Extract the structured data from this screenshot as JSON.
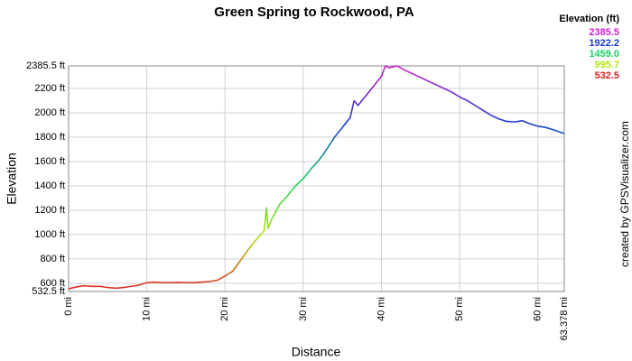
{
  "chart_data": {
    "type": "line",
    "title": "Green Spring to Rockwood, PA",
    "x_label": "Distance",
    "y_label": "Elevation",
    "credit": "created by GPSVisualizer.com",
    "legend": {
      "title": "Elevation (ft)",
      "entries": [
        {
          "value": 2385.5,
          "label": "2385.5",
          "color": "#d01ed0"
        },
        {
          "value": 1922.2,
          "label": "1922.2",
          "color": "#1a3ad0"
        },
        {
          "value": 1459,
          "label": "1459.0",
          "color": "#18d060"
        },
        {
          "value": 995.7,
          "label": "995.7",
          "color": "#b4e414"
        },
        {
          "value": 532.5,
          "label": "532.5",
          "color": "#e02020"
        }
      ]
    },
    "grid": true,
    "xlim": [
      0,
      63.378
    ],
    "ylim": [
      532.5,
      2385.5
    ],
    "xticks": [
      {
        "value": 0,
        "label": "0 mi"
      },
      {
        "value": 10,
        "label": "10 mi"
      },
      {
        "value": 20,
        "label": "20 mi"
      },
      {
        "value": 30,
        "label": "30 mi"
      },
      {
        "value": 40,
        "label": "40 mi"
      },
      {
        "value": 50,
        "label": "50 mi"
      },
      {
        "value": 60,
        "label": "60 mi"
      },
      {
        "value": 63.378,
        "label": "63.378 mi"
      }
    ],
    "yticks": [
      {
        "value": 532.5,
        "label": "532.5 ft"
      },
      {
        "value": 600,
        "label": "600 ft"
      },
      {
        "value": 800,
        "label": "800 ft"
      },
      {
        "value": 1000,
        "label": "1000 ft"
      },
      {
        "value": 1200,
        "label": "1200 ft"
      },
      {
        "value": 1400,
        "label": "1400 ft"
      },
      {
        "value": 1600,
        "label": "1600 ft"
      },
      {
        "value": 1800,
        "label": "1800 ft"
      },
      {
        "value": 2000,
        "label": "2000 ft"
      },
      {
        "value": 2200,
        "label": "2200 ft"
      },
      {
        "value": 2385.5,
        "label": "2385.5 ft"
      }
    ],
    "x": [
      0,
      1,
      2,
      3,
      4,
      5,
      6,
      7,
      8,
      9,
      10,
      11,
      12,
      13,
      14,
      15,
      16,
      17,
      18,
      19,
      20,
      21,
      22,
      23,
      24,
      25,
      25.3,
      25.5,
      26,
      27,
      28,
      29,
      30,
      31,
      32,
      33,
      34,
      35,
      36,
      36.5,
      37,
      38,
      39,
      40,
      40.5,
      41,
      42,
      43,
      44,
      45,
      46,
      47,
      48,
      49,
      50,
      51,
      52,
      53,
      54,
      55,
      56,
      57,
      58,
      59,
      60,
      61,
      62,
      63.378
    ],
    "series": [
      {
        "name": "Elevation",
        "values": [
          555,
          570,
          580,
          575,
          575,
          565,
          560,
          565,
          575,
          585,
          605,
          610,
          605,
          605,
          608,
          605,
          605,
          610,
          615,
          625,
          660,
          700,
          790,
          880,
          960,
          1030,
          1220,
          1050,
          1130,
          1250,
          1320,
          1400,
          1460,
          1540,
          1610,
          1700,
          1800,
          1880,
          1960,
          2100,
          2060,
          2140,
          2220,
          2300,
          2385.5,
          2370,
          2385,
          2350,
          2320,
          2290,
          2260,
          2230,
          2200,
          2170,
          2130,
          2100,
          2060,
          2020,
          1980,
          1950,
          1930,
          1925,
          1935,
          1910,
          1890,
          1880,
          1860,
          1830
        ]
      }
    ]
  }
}
